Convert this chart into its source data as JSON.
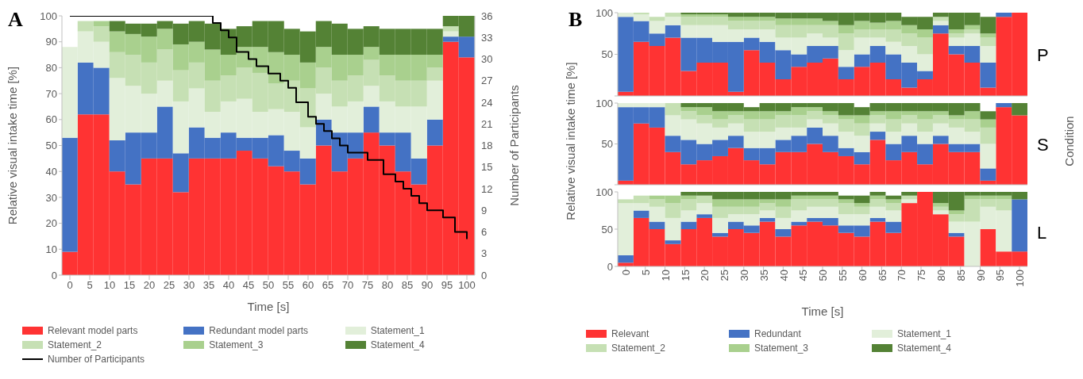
{
  "chart_data": [
    {
      "type": "bar",
      "title": "A",
      "stacked": true,
      "xlabel": "Time [s]",
      "ylabel": "Relative visual intake time [%]",
      "y2label": "Number of Participants",
      "legend": "bottom",
      "x": [
        0,
        4,
        8,
        12,
        16,
        20,
        24,
        28,
        32,
        36,
        40,
        44,
        48,
        52,
        56,
        60,
        64,
        68,
        72,
        76,
        80,
        84,
        88,
        92,
        96,
        100
      ],
      "xlim": [
        -2,
        102
      ],
      "xticks": [
        0,
        5,
        10,
        15,
        20,
        25,
        30,
        35,
        40,
        45,
        50,
        55,
        60,
        65,
        70,
        75,
        80,
        85,
        90,
        95,
        100
      ],
      "ylim": [
        0,
        100
      ],
      "yticks": [
        0,
        10,
        20,
        30,
        40,
        50,
        60,
        70,
        80,
        90,
        100
      ],
      "y2lim": [
        0,
        36
      ],
      "y2ticks": [
        0,
        3,
        6,
        9,
        12,
        15,
        18,
        21,
        24,
        27,
        30,
        33,
        36
      ],
      "series": [
        {
          "name": "Relevant model parts",
          "color": "#ff3333",
          "values": [
            9,
            62,
            62,
            40,
            35,
            45,
            45,
            32,
            45,
            45,
            45,
            48,
            45,
            42,
            40,
            35,
            50,
            40,
            45,
            55,
            50,
            40,
            35,
            50,
            90,
            84
          ]
        },
        {
          "name": "Redundant model parts",
          "color": "#4472c4",
          "values": [
            44,
            20,
            18,
            12,
            20,
            10,
            20,
            15,
            12,
            8,
            10,
            5,
            8,
            12,
            8,
            10,
            10,
            15,
            10,
            10,
            5,
            15,
            10,
            10,
            2,
            8
          ]
        },
        {
          "name": "Statement_1",
          "color": "#e2efda",
          "values": [
            35,
            12,
            10,
            24,
            18,
            15,
            10,
            20,
            15,
            10,
            12,
            15,
            10,
            10,
            15,
            12,
            10,
            10,
            12,
            8,
            12,
            10,
            20,
            15,
            2,
            0
          ]
        },
        {
          "name": "Statement_2",
          "color": "#c6e0b4",
          "values": [
            0,
            4,
            6,
            10,
            12,
            12,
            12,
            12,
            10,
            12,
            10,
            12,
            15,
            10,
            12,
            15,
            10,
            10,
            10,
            10,
            10,
            10,
            10,
            5,
            2,
            0
          ]
        },
        {
          "name": "Statement_3",
          "color": "#a9d08e",
          "values": [
            0,
            0,
            2,
            8,
            8,
            10,
            8,
            10,
            8,
            12,
            8,
            8,
            10,
            12,
            10,
            10,
            8,
            10,
            8,
            5,
            8,
            10,
            10,
            5,
            0,
            0
          ]
        },
        {
          "name": "Statement_4",
          "color": "#548235",
          "values": [
            0,
            0,
            0,
            4,
            4,
            5,
            3,
            8,
            8,
            10,
            10,
            8,
            10,
            12,
            10,
            12,
            10,
            12,
            10,
            8,
            10,
            10,
            10,
            10,
            4,
            8
          ]
        },
        {
          "name": "Number of Participants",
          "type": "step",
          "axis": "y2",
          "color": "#000000",
          "x": [
            0,
            36,
            38,
            40,
            42,
            45,
            47,
            50,
            53,
            55,
            57,
            60,
            62,
            64,
            66,
            68,
            70,
            75,
            79,
            82,
            84,
            86,
            88,
            90,
            94,
            97,
            100
          ],
          "values": [
            36,
            35,
            34,
            33,
            31,
            30,
            29,
            28,
            27,
            26,
            24,
            22,
            21,
            20,
            19,
            18,
            17,
            16,
            14,
            13,
            12,
            11,
            10,
            9,
            8,
            6,
            5
          ]
        }
      ]
    },
    {
      "type": "bar",
      "title": "B",
      "stacked": true,
      "tick_labels": "y",
      "annotations": [
        "P"
      ],
      "x": [
        0,
        4,
        8,
        12,
        16,
        20,
        24,
        28,
        32,
        36,
        40,
        44,
        48,
        52,
        56,
        60,
        64,
        68,
        72,
        76,
        80,
        84,
        88,
        92,
        96,
        100
      ],
      "xlim": [
        -2,
        102
      ],
      "xticks": [
        0,
        5,
        10,
        15,
        20,
        25,
        30,
        35,
        40,
        45,
        50,
        55,
        60,
        65,
        70,
        75,
        80,
        85,
        90,
        95,
        100
      ],
      "ylim": [
        0,
        100
      ],
      "yticks": [
        {
          "value": 0,
          "label": null
        },
        50,
        100
      ],
      "series": [
        {
          "color": "#ff3333",
          "values": [
            5,
            65,
            60,
            70,
            30,
            40,
            40,
            5,
            55,
            40,
            20,
            35,
            40,
            45,
            20,
            35,
            40,
            20,
            10,
            20,
            75,
            50,
            40,
            10,
            95,
            100
          ]
        },
        {
          "color": "#4472c4",
          "values": [
            90,
            25,
            15,
            15,
            40,
            30,
            25,
            60,
            15,
            25,
            35,
            15,
            20,
            15,
            15,
            15,
            20,
            30,
            30,
            10,
            10,
            10,
            20,
            30,
            5,
            0
          ]
        },
        {
          "color": "#e2efda",
          "values": [
            5,
            8,
            15,
            10,
            15,
            15,
            20,
            15,
            10,
            15,
            15,
            20,
            15,
            10,
            20,
            20,
            10,
            15,
            20,
            20,
            5,
            10,
            15,
            20,
            0,
            0
          ]
        },
        {
          "color": "#c6e0b4",
          "values": [
            0,
            2,
            5,
            5,
            10,
            10,
            10,
            10,
            10,
            10,
            15,
            15,
            10,
            15,
            20,
            10,
            10,
            15,
            15,
            20,
            5,
            5,
            5,
            10,
            0,
            0
          ]
        },
        {
          "color": "#a9d08e",
          "values": [
            0,
            0,
            0,
            0,
            3,
            3,
            3,
            5,
            5,
            5,
            8,
            8,
            8,
            5,
            10,
            10,
            8,
            10,
            10,
            10,
            0,
            5,
            5,
            5,
            0,
            0
          ]
        },
        {
          "color": "#548235",
          "values": [
            0,
            0,
            0,
            0,
            2,
            2,
            2,
            5,
            5,
            5,
            7,
            7,
            7,
            10,
            15,
            10,
            12,
            10,
            10,
            15,
            5,
            20,
            15,
            20,
            0,
            0
          ]
        }
      ]
    },
    {
      "type": "bar",
      "stacked": true,
      "tick_labels": "y",
      "ylabel": "Relative visual intake time [%]",
      "annotations": [
        "S",
        "Condition"
      ],
      "x": [
        0,
        4,
        8,
        12,
        16,
        20,
        24,
        28,
        32,
        36,
        40,
        44,
        48,
        52,
        56,
        60,
        64,
        68,
        72,
        76,
        80,
        84,
        88,
        92,
        96,
        100
      ],
      "xlim": [
        -2,
        102
      ],
      "xticks": [
        0,
        5,
        10,
        15,
        20,
        25,
        30,
        35,
        40,
        45,
        50,
        55,
        60,
        65,
        70,
        75,
        80,
        85,
        90,
        95,
        100
      ],
      "ylim": [
        0,
        100
      ],
      "yticks": [
        {
          "value": 0,
          "label": null
        },
        50,
        100
      ],
      "series": [
        {
          "color": "#ff3333",
          "values": [
            5,
            75,
            70,
            40,
            25,
            30,
            35,
            45,
            30,
            25,
            40,
            40,
            50,
            40,
            35,
            25,
            55,
            30,
            40,
            25,
            50,
            40,
            40,
            5,
            95,
            85
          ]
        },
        {
          "color": "#4472c4",
          "values": [
            90,
            20,
            25,
            20,
            30,
            20,
            20,
            15,
            15,
            20,
            15,
            20,
            20,
            20,
            10,
            15,
            10,
            20,
            20,
            25,
            10,
            10,
            10,
            15,
            5,
            0
          ]
        },
        {
          "color": "#e2efda",
          "values": [
            5,
            5,
            5,
            25,
            25,
            25,
            15,
            15,
            20,
            20,
            15,
            10,
            10,
            15,
            20,
            20,
            10,
            15,
            15,
            15,
            15,
            20,
            15,
            30,
            0,
            0
          ]
        },
        {
          "color": "#c6e0b4",
          "values": [
            0,
            0,
            0,
            15,
            10,
            10,
            10,
            10,
            15,
            15,
            15,
            15,
            10,
            10,
            15,
            15,
            10,
            15,
            10,
            15,
            10,
            10,
            15,
            20,
            0,
            0
          ]
        },
        {
          "color": "#a9d08e",
          "values": [
            0,
            0,
            0,
            0,
            5,
            10,
            10,
            5,
            10,
            10,
            5,
            10,
            5,
            5,
            5,
            10,
            5,
            10,
            5,
            10,
            5,
            5,
            10,
            10,
            0,
            0
          ]
        },
        {
          "color": "#548235",
          "values": [
            0,
            0,
            0,
            0,
            5,
            5,
            10,
            10,
            5,
            10,
            10,
            5,
            5,
            10,
            15,
            10,
            10,
            10,
            10,
            10,
            10,
            15,
            10,
            10,
            0,
            15
          ]
        }
      ]
    },
    {
      "type": "bar",
      "stacked": true,
      "xlabel": "Time [s]",
      "legend": "bottom",
      "annotations": [
        "L"
      ],
      "x": [
        0,
        4,
        8,
        12,
        16,
        20,
        24,
        28,
        32,
        36,
        40,
        44,
        48,
        52,
        56,
        60,
        64,
        68,
        72,
        76,
        80,
        84,
        88,
        92,
        96,
        100
      ],
      "xlim": [
        -2,
        102
      ],
      "xticks": [
        0,
        5,
        10,
        15,
        20,
        25,
        30,
        35,
        40,
        45,
        50,
        55,
        60,
        65,
        70,
        75,
        80,
        85,
        90,
        95,
        100
      ],
      "ylim": [
        0,
        100
      ],
      "yticks": [
        0,
        50,
        100
      ],
      "series": [
        {
          "name": "Relevant",
          "color": "#ff3333",
          "values": [
            5,
            65,
            50,
            30,
            50,
            65,
            40,
            50,
            45,
            60,
            40,
            55,
            60,
            55,
            45,
            40,
            60,
            45,
            85,
            100,
            70,
            40,
            0,
            50,
            20,
            20
          ]
        },
        {
          "name": "Redundant",
          "color": "#4472c4",
          "values": [
            10,
            10,
            10,
            5,
            10,
            5,
            5,
            10,
            10,
            5,
            10,
            5,
            5,
            10,
            10,
            15,
            5,
            15,
            0,
            0,
            0,
            5,
            0,
            0,
            0,
            70
          ]
        },
        {
          "name": "Statement_1",
          "color": "#e2efda",
          "values": [
            70,
            10,
            20,
            30,
            15,
            15,
            20,
            10,
            15,
            10,
            15,
            15,
            15,
            15,
            15,
            15,
            15,
            15,
            5,
            0,
            5,
            15,
            60,
            30,
            55,
            0
          ]
        },
        {
          "name": "Statement_2",
          "color": "#c6e0b4",
          "values": [
            5,
            10,
            10,
            20,
            15,
            10,
            15,
            10,
            10,
            10,
            15,
            15,
            10,
            10,
            15,
            10,
            10,
            10,
            5,
            0,
            5,
            10,
            30,
            10,
            15,
            0
          ]
        },
        {
          "name": "Statement_3",
          "color": "#a9d08e",
          "values": [
            0,
            0,
            5,
            10,
            5,
            0,
            10,
            10,
            10,
            5,
            10,
            5,
            5,
            5,
            5,
            5,
            5,
            5,
            0,
            0,
            5,
            5,
            5,
            5,
            5,
            0
          ]
        },
        {
          "name": "Statement_4",
          "color": "#548235",
          "values": [
            0,
            0,
            0,
            0,
            5,
            5,
            10,
            10,
            10,
            10,
            10,
            5,
            5,
            5,
            5,
            10,
            5,
            5,
            5,
            0,
            15,
            25,
            5,
            5,
            5,
            10
          ]
        }
      ]
    }
  ]
}
